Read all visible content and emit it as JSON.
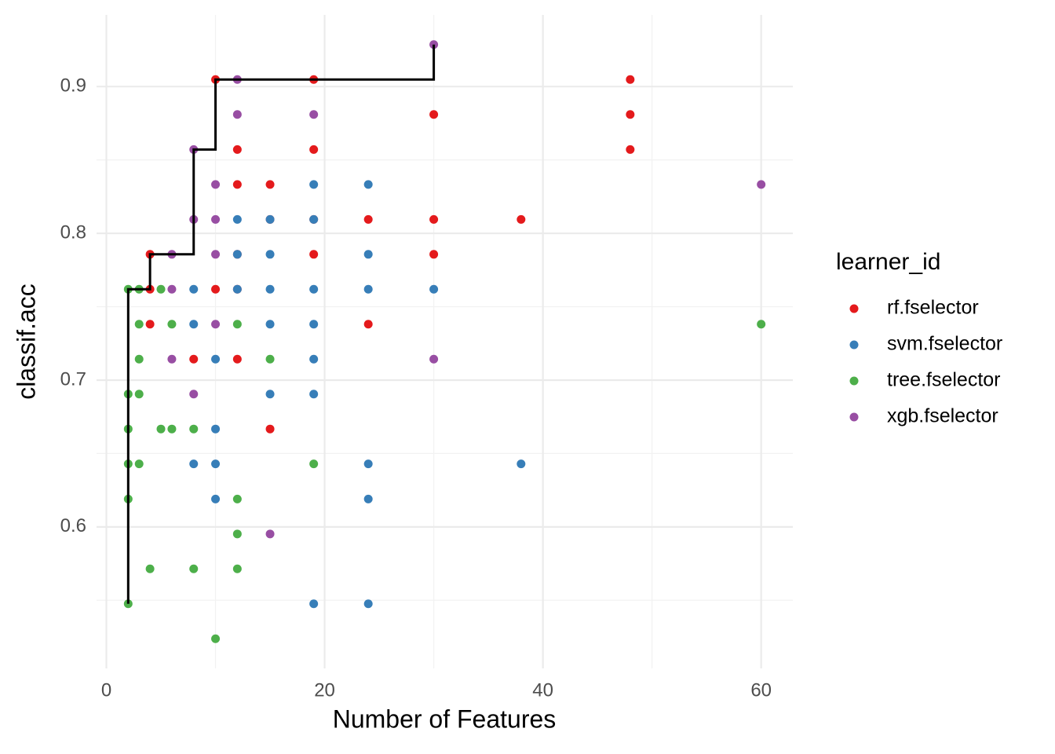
{
  "chart_data": {
    "type": "scatter",
    "x_label": "Number of Features",
    "y_label": "classif.acc",
    "legend_title": "learner_id",
    "legend_position": "right",
    "grid": true,
    "xlim": [
      -0.9,
      62.9
    ],
    "ylim": [
      0.5036,
      0.9488
    ],
    "xticks": [
      0,
      20,
      40,
      60
    ],
    "yticks": [
      0.6,
      0.7,
      0.8,
      0.9
    ],
    "xminor_ticks": [
      10,
      30,
      50
    ],
    "yminor_ticks": [
      0.55,
      0.65,
      0.75,
      0.85
    ],
    "series": [
      {
        "name": "rf.fselector",
        "color": "#E41A1C",
        "x": [
          4,
          4,
          4,
          8,
          10,
          10,
          12,
          12,
          12,
          12,
          12,
          15,
          15,
          15,
          19,
          19,
          19,
          19,
          24,
          24,
          30,
          30,
          30,
          38,
          48,
          48,
          48
        ],
        "values": [
          0.7857,
          0.7619,
          0.7381,
          0.7143,
          0.9048,
          0.7619,
          0.8571,
          0.8333,
          0.7857,
          0.7619,
          0.7143,
          0.8333,
          0.8095,
          0.6667,
          0.9048,
          0.8571,
          0.8095,
          0.7857,
          0.8095,
          0.7381,
          0.881,
          0.8095,
          0.7857,
          0.8095,
          0.9048,
          0.881,
          0.8571
        ]
      },
      {
        "name": "svm.fselector",
        "color": "#377EB8",
        "x": [
          8,
          8,
          8,
          10,
          10,
          10,
          10,
          12,
          12,
          12,
          15,
          15,
          15,
          15,
          15,
          19,
          19,
          19,
          19,
          19,
          19,
          19,
          24,
          24,
          24,
          24,
          24,
          24,
          30,
          38
        ],
        "values": [
          0.7619,
          0.7381,
          0.6429,
          0.7143,
          0.6667,
          0.6429,
          0.619,
          0.8095,
          0.7857,
          0.7619,
          0.8095,
          0.7857,
          0.7619,
          0.7381,
          0.6905,
          0.8333,
          0.8095,
          0.7619,
          0.7381,
          0.7143,
          0.6905,
          0.5476,
          0.8333,
          0.7857,
          0.7619,
          0.6429,
          0.619,
          0.5476,
          0.7619,
          0.6429
        ]
      },
      {
        "name": "tree.fselector",
        "color": "#4DAF4A",
        "x": [
          2,
          2,
          2,
          2,
          2,
          2,
          3,
          3,
          3,
          3,
          3,
          4,
          5,
          5,
          6,
          6,
          8,
          8,
          10,
          12,
          12,
          12,
          12,
          15,
          19,
          60
        ],
        "values": [
          0.7619,
          0.6905,
          0.6667,
          0.6429,
          0.619,
          0.5476,
          0.7619,
          0.7381,
          0.7143,
          0.6905,
          0.6429,
          0.5714,
          0.7619,
          0.6667,
          0.7381,
          0.6667,
          0.6667,
          0.5714,
          0.5238,
          0.7381,
          0.619,
          0.5952,
          0.5714,
          0.7143,
          0.6429,
          0.7381
        ]
      },
      {
        "name": "xgb.fselector",
        "color": "#984EA3",
        "x": [
          6,
          6,
          6,
          8,
          8,
          8,
          10,
          10,
          10,
          10,
          12,
          12,
          15,
          19,
          30,
          30,
          60
        ],
        "values": [
          0.7857,
          0.7619,
          0.7143,
          0.8571,
          0.8095,
          0.6905,
          0.8333,
          0.8095,
          0.7857,
          0.7381,
          0.9048,
          0.881,
          0.5952,
          0.881,
          0.9286,
          0.7143,
          0.8333
        ]
      }
    ],
    "step_line": {
      "color": "#000000",
      "x": [
        2,
        2,
        4,
        4,
        8,
        8,
        10,
        10,
        30,
        30
      ],
      "values": [
        0.5476,
        0.7619,
        0.7619,
        0.7857,
        0.7857,
        0.8571,
        0.8571,
        0.9048,
        0.9048,
        0.9286
      ]
    }
  }
}
